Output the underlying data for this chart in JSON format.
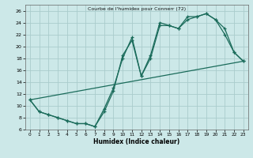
{
  "title": "Courbe de l'humidex pour Connerr (72)",
  "xlabel": "Humidex (Indice chaleur)",
  "bg_color": "#cce8e8",
  "grid_color": "#aacccc",
  "line_color": "#1a6b5a",
  "xlim_min": -0.5,
  "xlim_max": 23.5,
  "ylim_min": 6,
  "ylim_max": 27,
  "xticks": [
    0,
    1,
    2,
    3,
    4,
    5,
    6,
    7,
    8,
    9,
    10,
    11,
    12,
    13,
    14,
    15,
    16,
    17,
    18,
    19,
    20,
    21,
    22,
    23
  ],
  "yticks": [
    6,
    8,
    10,
    12,
    14,
    16,
    18,
    20,
    22,
    24,
    26
  ],
  "line1_x": [
    0,
    1,
    2,
    3,
    4,
    5,
    6,
    7,
    8,
    9,
    10,
    11,
    12,
    13,
    14,
    15,
    16,
    17,
    18,
    19,
    20,
    21,
    22,
    23
  ],
  "line1_y": [
    11,
    9,
    8.5,
    8,
    7.5,
    7,
    7,
    6.5,
    9.5,
    13,
    18,
    21.5,
    15,
    18.5,
    24,
    23.5,
    23,
    25,
    25,
    25.5,
    24.5,
    23,
    19,
    17.5
  ],
  "line2_x": [
    0,
    1,
    2,
    3,
    4,
    5,
    6,
    7,
    8,
    9,
    10,
    11,
    12,
    13,
    14,
    15,
    16,
    17,
    18,
    19,
    20,
    21,
    22,
    23
  ],
  "line2_y": [
    11,
    9,
    8.5,
    8,
    7.5,
    7,
    7,
    6.5,
    9,
    12.5,
    18.5,
    21,
    15,
    18,
    23.5,
    23.5,
    23,
    24.5,
    25,
    25.5,
    24.5,
    22,
    19,
    17.5
  ],
  "line3_x": [
    0,
    23
  ],
  "line3_y": [
    11,
    17.5
  ]
}
